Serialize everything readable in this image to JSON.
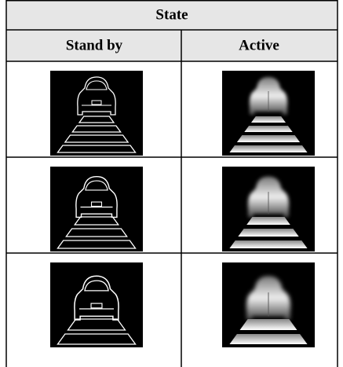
{
  "table": {
    "title": "State",
    "columns": [
      "Stand by",
      "Active"
    ]
  }
}
